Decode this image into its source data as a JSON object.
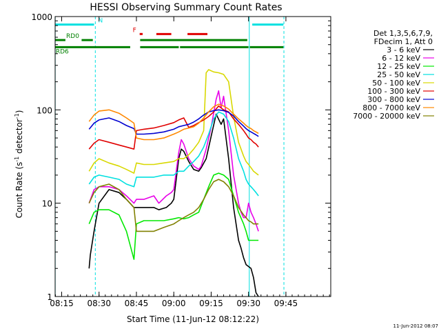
{
  "chart_data": {
    "type": "line",
    "title": "HESSI Observing Summary Count Rates",
    "xlabel": "Start Time (11-Jun-12 08:12:22)",
    "ylabel_main": "Count Rate (s",
    "ylabel_sup1": "-1",
    "ylabel_mid": " detector",
    "ylabel_sup2": "-1",
    "ylabel_end": ")",
    "yscale": "log",
    "ylim": [
      1,
      1000
    ],
    "xlim_minutes": [
      492.37,
      603
    ],
    "x_ticks": [
      {
        "label": "08:15",
        "minutes": 495
      },
      {
        "label": "08:30",
        "minutes": 510
      },
      {
        "label": "08:45",
        "minutes": 525
      },
      {
        "label": "09:00",
        "minutes": 540
      },
      {
        "label": "09:15",
        "minutes": 555
      },
      {
        "label": "09:30",
        "minutes": 570
      },
      {
        "label": "09:45",
        "minutes": 585
      }
    ],
    "y_ticks": [
      {
        "label": "1",
        "value": 1
      },
      {
        "label": "10",
        "value": 10
      },
      {
        "label": "100",
        "value": 100
      },
      {
        "label": "1000",
        "value": 1000
      }
    ],
    "legend": {
      "position": "right",
      "header": [
        "Det 1,3,5,6,7,9,",
        "FDecim 1, Att 0"
      ],
      "entries": [
        {
          "label": "3 - 6 keV",
          "color": "#000000"
        },
        {
          "label": "6 - 12 keV",
          "color": "#e800e8"
        },
        {
          "label": "12 - 25 keV",
          "color": "#00e800"
        },
        {
          "label": "25 - 50 keV",
          "color": "#00e0e0"
        },
        {
          "label": "50 - 100 keV",
          "color": "#d8d800"
        },
        {
          "label": "100 - 300 keV",
          "color": "#e00000"
        },
        {
          "label": "300 - 800 keV",
          "color": "#0000d0"
        },
        {
          "label": "800 - 7000 keV",
          "color": "#ff8800"
        },
        {
          "label": "7000 - 20000 keV",
          "color": "#808000"
        }
      ]
    },
    "series": [
      {
        "name": "3 - 6 keV",
        "color": "#000000",
        "x": [
          506,
          506.5,
          508,
          510,
          514,
          518,
          521,
          524,
          525,
          528,
          532,
          534,
          537,
          539,
          540,
          542,
          543,
          544,
          546,
          548,
          550,
          551,
          553,
          555,
          557,
          559,
          560,
          562,
          564,
          566,
          567,
          568,
          569,
          571,
          572,
          573,
          574
        ],
        "values": [
          2,
          2.8,
          5,
          10,
          14,
          13,
          11,
          9,
          9,
          9,
          9,
          8.5,
          9,
          10,
          11,
          30,
          38,
          36,
          28,
          23,
          22,
          24,
          30,
          52,
          90,
          70,
          80,
          30,
          9,
          4,
          3.3,
          2.6,
          2.2,
          2,
          1.6,
          1.1,
          1
        ]
      },
      {
        "name": "6 - 12 keV",
        "color": "#e800e8",
        "x": [
          506,
          508,
          510,
          514,
          518,
          521,
          524,
          525,
          528,
          532,
          534,
          537,
          539,
          540,
          542,
          543,
          544,
          546,
          548,
          550,
          551,
          553,
          555,
          557,
          558,
          559,
          560,
          562,
          564,
          566,
          567,
          568,
          569,
          570,
          571,
          572,
          573,
          574
        ],
        "values": [
          10,
          14,
          15,
          15,
          14,
          12,
          10,
          11,
          11,
          12,
          10,
          12,
          13,
          14,
          35,
          48,
          43,
          30,
          25,
          23,
          25,
          38,
          65,
          130,
          160,
          105,
          140,
          60,
          20,
          10,
          8,
          7,
          7,
          10,
          8,
          7,
          6,
          5
        ]
      },
      {
        "name": "12 - 25 keV",
        "color": "#00e800",
        "x": [
          506,
          508,
          510,
          514,
          518,
          521,
          524,
          525,
          528,
          532,
          536,
          540,
          542,
          544,
          546,
          548,
          550,
          552,
          554,
          556,
          558,
          560,
          562,
          564,
          566,
          568,
          569,
          570,
          571,
          572,
          573,
          574
        ],
        "values": [
          6,
          8,
          8.5,
          8.5,
          7.5,
          5,
          2.5,
          6,
          6.5,
          6.5,
          6.5,
          6.8,
          7,
          6.8,
          7,
          7.5,
          8,
          11,
          15,
          20,
          21,
          20,
          18,
          12,
          8,
          6,
          5,
          4,
          4,
          4,
          4,
          4
        ]
      },
      {
        "name": "25 - 50 keV",
        "color": "#00e0e0",
        "x": [
          506,
          508,
          510,
          514,
          518,
          521,
          524,
          525,
          528,
          532,
          536,
          540,
          542,
          544,
          546,
          548,
          550,
          552,
          554,
          556,
          558,
          560,
          562,
          564,
          566,
          568,
          569,
          570,
          571,
          572,
          573,
          574
        ],
        "values": [
          16,
          19,
          20,
          19,
          18,
          16,
          15,
          19,
          19,
          19,
          20,
          20,
          22,
          22,
          25,
          28,
          32,
          40,
          55,
          80,
          95,
          90,
          75,
          50,
          30,
          22,
          18,
          16,
          15,
          14,
          13,
          12
        ]
      },
      {
        "name": "50 - 100 keV",
        "color": "#d8d800",
        "x": [
          506,
          508,
          510,
          514,
          518,
          521,
          524,
          525,
          528,
          532,
          536,
          540,
          542,
          544,
          546,
          548,
          550,
          552,
          553,
          554,
          556,
          558,
          560,
          562,
          564,
          566,
          568,
          569,
          570,
          571,
          572,
          573,
          574
        ],
        "values": [
          22,
          27,
          30,
          27,
          25,
          23,
          21,
          27,
          26,
          26,
          27,
          28,
          30,
          30,
          33,
          38,
          45,
          60,
          250,
          270,
          255,
          250,
          240,
          200,
          85,
          45,
          32,
          28,
          26,
          24,
          22,
          21,
          20
        ]
      },
      {
        "name": "100 - 300 keV",
        "color": "#e00000",
        "x": [
          506,
          508,
          510,
          514,
          518,
          521,
          524,
          525,
          528,
          532,
          536,
          540,
          542,
          544,
          546,
          548,
          550,
          552,
          554,
          556,
          558,
          560,
          562,
          564,
          566,
          568,
          569,
          570,
          571,
          572,
          573,
          574
        ],
        "values": [
          38,
          44,
          48,
          45,
          42,
          40,
          38,
          60,
          62,
          64,
          68,
          73,
          78,
          82,
          65,
          68,
          73,
          78,
          85,
          95,
          110,
          100,
          95,
          80,
          70,
          60,
          55,
          50,
          48,
          45,
          43,
          40
        ]
      },
      {
        "name": "300 - 800 keV",
        "color": "#0000d0",
        "x": [
          506,
          508,
          510,
          514,
          518,
          521,
          524,
          525,
          528,
          532,
          536,
          540,
          542,
          544,
          546,
          548,
          550,
          552,
          554,
          556,
          558,
          560,
          562,
          564,
          566,
          568,
          569,
          570,
          571,
          572,
          573,
          574
        ],
        "values": [
          62,
          72,
          78,
          82,
          75,
          68,
          63,
          55,
          55,
          56,
          58,
          62,
          66,
          68,
          70,
          74,
          80,
          88,
          95,
          98,
          100,
          98,
          94,
          86,
          75,
          67,
          63,
          60,
          58,
          56,
          54,
          52
        ]
      },
      {
        "name": "800 - 7000 keV",
        "color": "#ff8800",
        "x": [
          506,
          508,
          510,
          514,
          518,
          521,
          524,
          525,
          528,
          532,
          536,
          540,
          542,
          544,
          546,
          548,
          550,
          552,
          554,
          556,
          558,
          560,
          562,
          564,
          566,
          568,
          569,
          570,
          571,
          572,
          573,
          574
        ],
        "values": [
          75,
          88,
          97,
          100,
          92,
          82,
          72,
          50,
          48,
          48,
          50,
          55,
          58,
          62,
          64,
          66,
          72,
          82,
          95,
          108,
          115,
          110,
          102,
          90,
          80,
          72,
          68,
          65,
          63,
          60,
          58,
          56
        ]
      },
      {
        "name": "7000 - 20000 keV",
        "color": "#808000",
        "x": [
          506,
          508,
          510,
          514,
          518,
          521,
          524,
          525,
          528,
          532,
          536,
          540,
          542,
          544,
          546,
          548,
          550,
          552,
          554,
          556,
          558,
          560,
          562,
          564,
          566,
          568,
          569,
          570,
          571,
          572,
          573,
          574
        ],
        "values": [
          10,
          13,
          15,
          16,
          14,
          11,
          9,
          5,
          5,
          5,
          5.5,
          6,
          6.5,
          7,
          7.5,
          8,
          9,
          11,
          14,
          17,
          18,
          17,
          15,
          12,
          9,
          7.5,
          7,
          6.5,
          6.3,
          6,
          6,
          6
        ]
      }
    ],
    "state_bars": [
      {
        "label": "N",
        "label_color": "#00e0e0",
        "color": "#00e0e0",
        "y_value": 820,
        "spans": [
          [
            492.4,
            508
          ],
          [
            571.5,
            584
          ]
        ]
      },
      {
        "label": "F",
        "label_color": "#e00000",
        "color": "#e00000",
        "y_value": 650,
        "spans": [
          [
            526.3,
            527.5
          ],
          [
            533,
            539
          ],
          [
            545.5,
            553.5
          ]
        ]
      },
      {
        "label": "RD0",
        "label_color": "#008000",
        "color": "#008000",
        "y_value": 560,
        "spans": [
          [
            492.4,
            496.5
          ],
          [
            503,
            507.5
          ],
          [
            526.5,
            569.5
          ]
        ]
      },
      {
        "label": "RD6",
        "label_color": "#008000",
        "color": "#008000",
        "y_value": 470,
        "spans": [
          [
            492.4,
            522.5
          ],
          [
            526.5,
            542
          ],
          [
            542.5,
            570
          ],
          [
            570.5,
            584
          ]
        ]
      }
    ],
    "vertical_markers": [
      {
        "minutes": 492.4,
        "style": "solid",
        "color": "#00e0e0"
      },
      {
        "minutes": 508.5,
        "style": "dashed",
        "color": "#00e0e0"
      },
      {
        "minutes": 570.3,
        "style": "solid",
        "color": "#00e0e0"
      },
      {
        "minutes": 584.2,
        "style": "dashed",
        "color": "#00e0e0"
      }
    ],
    "footer_timestamp": "11-Jun-2012 08:07"
  }
}
